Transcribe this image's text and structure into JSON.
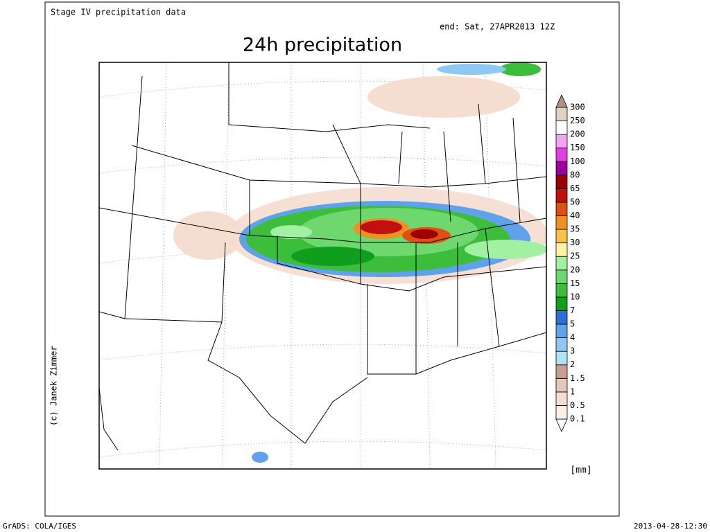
{
  "header": {
    "source": "Stage IV precipitation data",
    "title": "24h precipitation",
    "valid": "end: Sat, 27APR2013 12Z"
  },
  "legend": {
    "unit": "[mm]",
    "levels": [
      0.1,
      0.5,
      1,
      1.5,
      2,
      3,
      4,
      5,
      7,
      10,
      15,
      20,
      25,
      30,
      35,
      40,
      50,
      65,
      80,
      100,
      150,
      200,
      250,
      300
    ],
    "colors": [
      "#ffffff",
      "#fdeee6",
      "#f5ddd0",
      "#e6c8b8",
      "#c8a090",
      "#b0e2f2",
      "#90c8f4",
      "#60a2ea",
      "#2e6ed8",
      "#0f9e1e",
      "#3cbe3c",
      "#6ed86e",
      "#a2f0a2",
      "#fff2a4",
      "#f8c242",
      "#f09022",
      "#e05010",
      "#c01010",
      "#9c0000",
      "#9e009e",
      "#e040e0",
      "#f2a4f2",
      "#ffffff",
      "#e2d2c2",
      "#b09080"
    ]
  },
  "credit": "(c) Janek Zimmer",
  "footer": {
    "software": "GrADS: COLA/IGES",
    "timestamp": "2013-04-28-12:30"
  }
}
